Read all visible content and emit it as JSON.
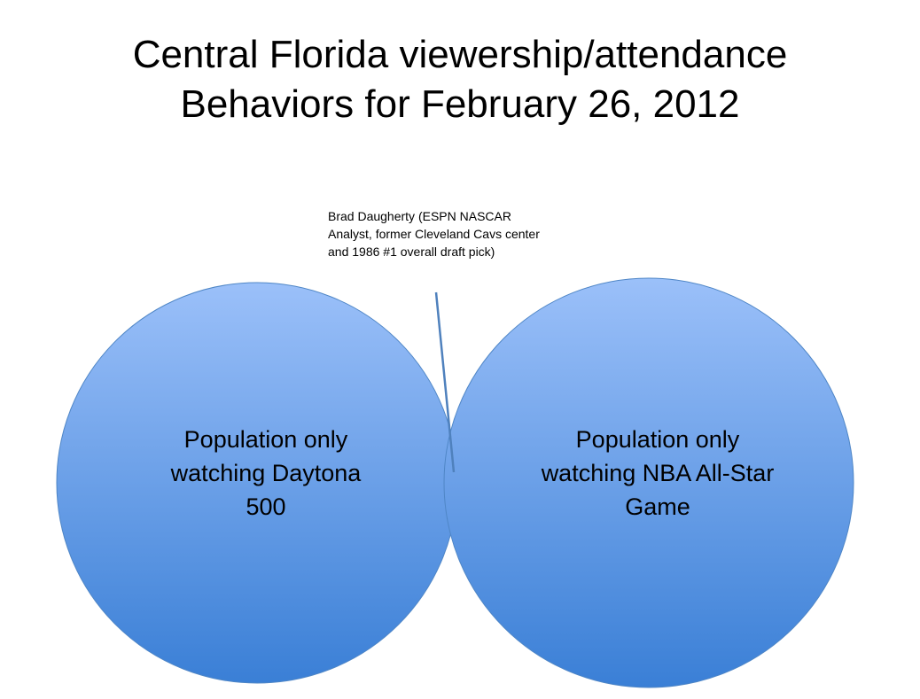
{
  "title": {
    "line1": "Central Florida viewership/attendance",
    "line2": "Behaviors for February 26, 2012"
  },
  "annotation": {
    "line1": "Brad Daugherty (ESPN NASCAR",
    "line2": "Analyst, former Cleveland Cavs center",
    "line3": "and 1986 #1 overall draft pick)"
  },
  "venn": {
    "left_set": {
      "line1": "Population only",
      "line2": "watching Daytona",
      "line3": "500"
    },
    "right_set": {
      "line1": "Population only",
      "line2": "watching NBA All-Star",
      "line3": "Game"
    }
  },
  "colors": {
    "circle_top": "#9bc0f9",
    "circle_bottom": "#3a7fd6",
    "circle_stroke": "#4f86c6",
    "pointer_line": "#4f81bd"
  }
}
